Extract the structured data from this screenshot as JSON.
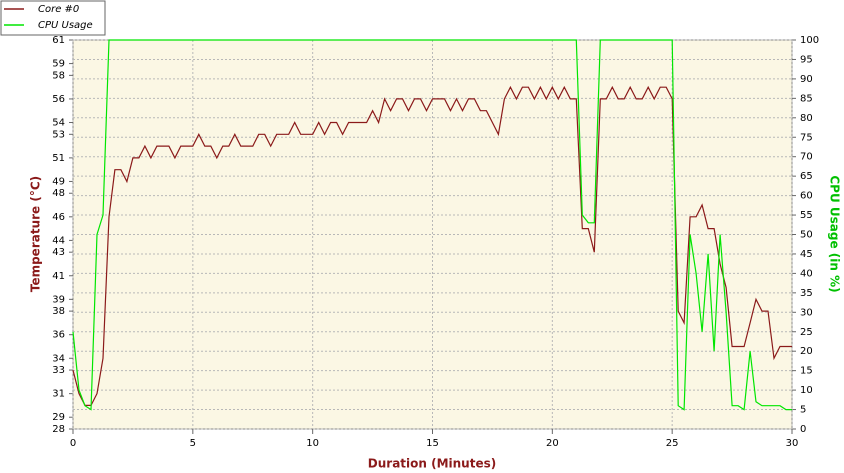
{
  "chart_data": {
    "type": "line",
    "xlabel": "Duration (Minutes)",
    "ylabel": "Temperature (°C)",
    "y2label": "CPU Usage (in %)",
    "x": [
      0,
      0.25,
      0.5,
      0.75,
      1,
      1.25,
      1.5,
      1.75,
      2,
      2.25,
      2.5,
      2.75,
      3,
      3.25,
      3.5,
      3.75,
      4,
      4.25,
      4.5,
      4.75,
      5,
      5.25,
      5.5,
      5.75,
      6,
      6.25,
      6.5,
      6.75,
      7,
      7.25,
      7.5,
      7.75,
      8,
      8.25,
      8.5,
      8.75,
      9,
      9.25,
      9.5,
      9.75,
      10,
      10.25,
      10.5,
      10.75,
      11,
      11.25,
      11.5,
      11.75,
      12,
      12.25,
      12.5,
      12.75,
      13,
      13.25,
      13.5,
      13.75,
      14,
      14.25,
      14.5,
      14.75,
      15,
      15.25,
      15.5,
      15.75,
      16,
      16.25,
      16.5,
      16.75,
      17,
      17.25,
      17.5,
      17.75,
      18,
      18.25,
      18.5,
      18.75,
      19,
      19.25,
      19.5,
      19.75,
      20,
      20.25,
      20.5,
      20.75,
      21,
      21.25,
      21.5,
      21.75,
      22,
      22.25,
      22.5,
      22.75,
      23,
      23.25,
      23.5,
      23.75,
      24,
      24.25,
      24.5,
      24.75,
      25,
      25.25,
      25.5,
      25.75,
      26,
      26.25,
      26.5,
      26.75,
      27,
      27.25,
      27.5,
      27.75,
      28,
      28.25,
      28.5,
      28.75,
      29,
      29.25,
      29.5,
      29.75,
      30
    ],
    "series": [
      {
        "name": "Core #0",
        "color": "#8b1a1a",
        "axis": "y",
        "values": [
          33,
          31,
          30,
          30,
          31,
          34,
          46,
          50,
          50,
          49,
          51,
          51,
          52,
          51,
          52,
          52,
          52,
          51,
          52,
          52,
          52,
          53,
          52,
          52,
          51,
          52,
          52,
          53,
          52,
          52,
          52,
          53,
          53,
          52,
          53,
          53,
          53,
          54,
          53,
          53,
          53,
          54,
          53,
          54,
          54,
          53,
          54,
          54,
          54,
          54,
          55,
          54,
          56,
          55,
          56,
          56,
          55,
          56,
          56,
          55,
          56,
          56,
          56,
          55,
          56,
          55,
          56,
          56,
          55,
          55,
          54,
          53,
          56,
          57,
          56,
          57,
          57,
          56,
          57,
          56,
          57,
          56,
          57,
          56,
          56,
          45,
          45,
          43,
          56,
          56,
          57,
          56,
          56,
          57,
          56,
          56,
          57,
          56,
          57,
          57,
          56,
          38,
          37,
          46,
          46,
          47,
          45,
          45,
          42,
          40,
          35,
          35,
          35,
          37,
          39,
          38,
          38,
          34,
          35,
          35,
          35
        ]
      },
      {
        "name": "CPU Usage",
        "color": "#00e600",
        "axis": "y2",
        "values": [
          25,
          10,
          6,
          5,
          50,
          55,
          100,
          100,
          100,
          100,
          100,
          100,
          100,
          100,
          100,
          100,
          100,
          100,
          100,
          100,
          100,
          100,
          100,
          100,
          100,
          100,
          100,
          100,
          100,
          100,
          100,
          100,
          100,
          100,
          100,
          100,
          100,
          100,
          100,
          100,
          100,
          100,
          100,
          100,
          100,
          100,
          100,
          100,
          100,
          100,
          100,
          100,
          100,
          100,
          100,
          100,
          100,
          100,
          100,
          100,
          100,
          100,
          100,
          100,
          100,
          100,
          100,
          100,
          100,
          100,
          100,
          100,
          100,
          100,
          100,
          100,
          100,
          100,
          100,
          100,
          100,
          100,
          100,
          100,
          100,
          55,
          53,
          53,
          100,
          100,
          100,
          100,
          100,
          100,
          100,
          100,
          100,
          100,
          100,
          100,
          100,
          6,
          5,
          50,
          40,
          25,
          45,
          20,
          50,
          30,
          6,
          6,
          5,
          20,
          7,
          6,
          6,
          6,
          6,
          5,
          5
        ]
      }
    ],
    "xlim": [
      0,
      30
    ],
    "xticks": [
      0,
      5,
      10,
      15,
      20,
      25,
      30
    ],
    "ylim": [
      28,
      61
    ],
    "yticks": [
      28,
      29,
      31,
      33,
      34,
      36,
      38,
      39,
      41,
      43,
      44,
      46,
      48,
      49,
      51,
      53,
      54,
      56,
      58,
      59,
      61
    ],
    "y2lim": [
      0,
      100
    ],
    "y2ticks": [
      0,
      5,
      10,
      15,
      20,
      25,
      30,
      35,
      40,
      45,
      50,
      55,
      60,
      65,
      70,
      75,
      80,
      85,
      90,
      95,
      100
    ],
    "grid": true,
    "legend": "top-left"
  }
}
